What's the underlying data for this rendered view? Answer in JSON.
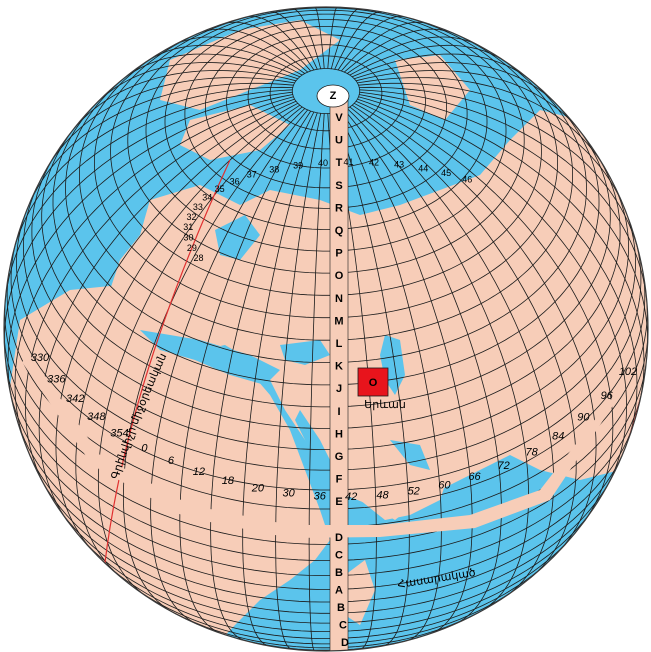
{
  "map": {
    "colors": {
      "ocean": "#5bc4ec",
      "land": "#f7cdb8",
      "grid": "#1b1b1b",
      "highlight": "#e8141c",
      "meridian_line": "#e03030",
      "band_strip": "#f7cdb8"
    },
    "pole_label": "Z",
    "band_letters_north": [
      "V",
      "U",
      "T",
      "S",
      "R",
      "Q",
      "P",
      "O",
      "N",
      "M",
      "L",
      "K",
      "J",
      "I",
      "H",
      "G",
      "F",
      "E"
    ],
    "band_letters_south": [
      "D",
      "C",
      "B",
      "A",
      "B",
      "C",
      "D"
    ],
    "highlight_cell": {
      "letter": "O",
      "place_label": "Երևան"
    },
    "north_zone_numbers": [
      "28",
      "29",
      "30",
      "31",
      "32",
      "33",
      "34",
      "35",
      "36",
      "37",
      "38",
      "39",
      "40",
      "41",
      "42",
      "43",
      "44",
      "45",
      "46"
    ],
    "equator_numbers": [
      "330",
      "336",
      "342",
      "348",
      "354",
      "0",
      "6",
      "12",
      "18",
      "20",
      "30",
      "36",
      "42",
      "48",
      "52",
      "60",
      "66",
      "72",
      "78",
      "84",
      "90",
      "96",
      "102"
    ],
    "curved_labels": {
      "meridian": "Գրինվիչի միջօրեական",
      "equator": "Հասարակած"
    },
    "icons": [
      "globe-icon"
    ]
  }
}
